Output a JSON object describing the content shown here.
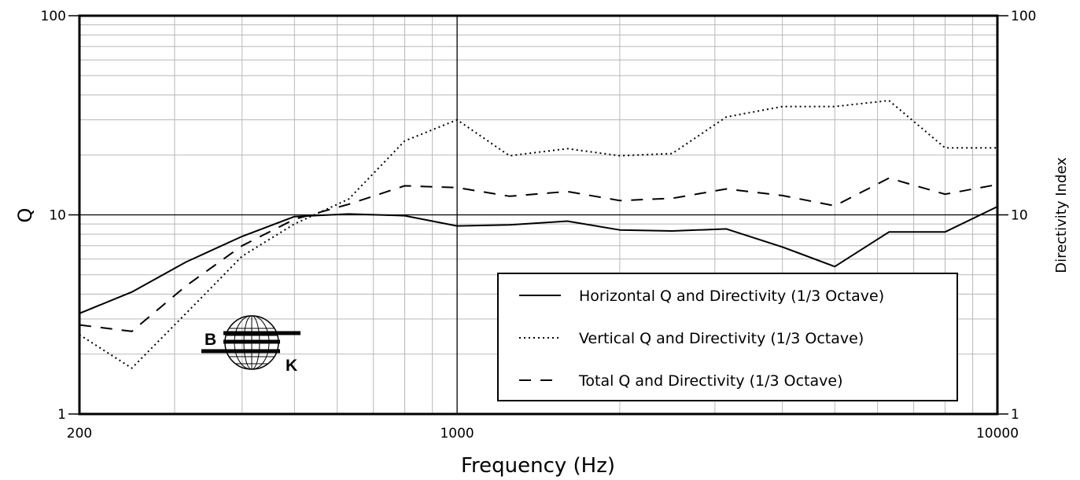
{
  "chart_data": {
    "type": "line",
    "xlabel": "Frequency (Hz)",
    "ylabel": "Q",
    "y2label": "Directivity Index",
    "xscale": "log",
    "yscale": "log",
    "xlim": [
      200,
      10000
    ],
    "ylim": [
      1,
      100
    ],
    "xticks": [
      200,
      1000,
      10000
    ],
    "xtick_labels": [
      "200",
      "1000",
      "10000"
    ],
    "yticks": [
      1,
      10,
      100
    ],
    "ytick_labels": [
      "1",
      "10",
      "100"
    ],
    "y2tick_labels": [
      "1",
      "10",
      "100"
    ],
    "grid": true,
    "legend_position": "bottom-right",
    "x": [
      200,
      250,
      315,
      400,
      500,
      630,
      800,
      1000,
      1250,
      1600,
      2000,
      2500,
      3150,
      4000,
      5000,
      6300,
      8000,
      10000
    ],
    "series": [
      {
        "name": "Horizontal Q and Directivity (1/3 Octave)",
        "style": "solid",
        "values": [
          3.2,
          4.1,
          5.8,
          7.8,
          9.8,
          10.1,
          9.9,
          8.8,
          8.9,
          9.3,
          8.4,
          8.3,
          8.5,
          6.9,
          5.5,
          8.2,
          8.2,
          11.0
        ]
      },
      {
        "name": "Vertical Q and Directivity (1/3 Octave)",
        "style": "dotted",
        "values": [
          2.5,
          1.7,
          3.2,
          6.2,
          9.0,
          12.0,
          23.5,
          30.0,
          19.8,
          21.5,
          19.8,
          20.3,
          31.0,
          35.0,
          35.0,
          37.5,
          21.7,
          21.7
        ]
      },
      {
        "name": "Total Q and Directivity (1/3 Octave)",
        "style": "dashed",
        "values": [
          2.8,
          2.6,
          4.4,
          7.0,
          9.5,
          11.3,
          14.0,
          13.7,
          12.4,
          13.1,
          11.8,
          12.1,
          13.5,
          12.5,
          11.1,
          15.3,
          12.7,
          14.2
        ]
      }
    ]
  },
  "logo": {
    "letter_left": "B",
    "letter_right": "K"
  }
}
